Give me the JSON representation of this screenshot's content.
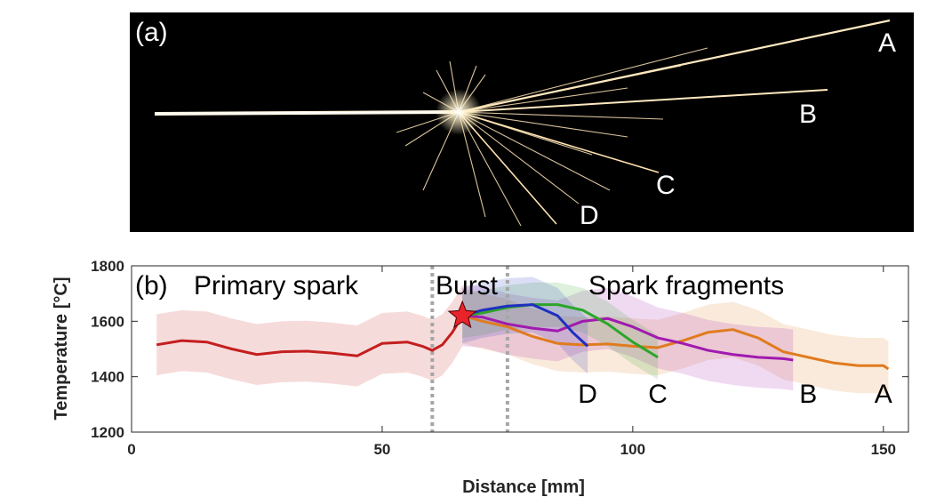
{
  "photo": {
    "panel_label": "(a)",
    "labels": [
      "A",
      "B",
      "C",
      "D"
    ],
    "background": "#000000",
    "spark_color": "#fff3d6"
  },
  "chart_data": {
    "type": "line",
    "panel_label": "(b)",
    "xlabel": "Distance [mm]",
    "ylabel": "Temperature [°C]",
    "xlim": [
      0,
      155
    ],
    "ylim": [
      1200,
      1800
    ],
    "xticks": [
      0,
      50,
      100,
      150
    ],
    "yticks": [
      1200,
      1400,
      1600,
      1800
    ],
    "grid": false,
    "regions": [
      {
        "label": "Primary spark",
        "x_from": 5,
        "x_to": 60
      },
      {
        "label": "Burst",
        "x_from": 60,
        "x_to": 75
      },
      {
        "label": "Spark fragments",
        "x_from": 75,
        "x_to": 152
      }
    ],
    "dividers_x": [
      60,
      75
    ],
    "burst_point": {
      "x": 66,
      "y": 1620
    },
    "series": [
      {
        "name": "Primary spark",
        "color": "#c41e1e",
        "x": [
          5,
          10,
          15,
          20,
          25,
          30,
          35,
          40,
          45,
          50,
          55,
          58,
          60,
          62,
          64,
          66
        ],
        "y": [
          1515,
          1530,
          1525,
          1500,
          1480,
          1490,
          1492,
          1485,
          1475,
          1520,
          1525,
          1510,
          1495,
          1515,
          1560,
          1620
        ],
        "band": 110
      },
      {
        "name": "A",
        "color": "#e07b1e",
        "x": [
          66,
          70,
          75,
          80,
          85,
          90,
          95,
          100,
          105,
          110,
          115,
          120,
          125,
          130,
          135,
          140,
          145,
          150,
          151
        ],
        "y": [
          1620,
          1600,
          1580,
          1545,
          1520,
          1515,
          1518,
          1510,
          1505,
          1530,
          1560,
          1570,
          1540,
          1490,
          1470,
          1450,
          1440,
          1440,
          1428
        ],
        "band": 100
      },
      {
        "name": "B",
        "color": "#a01ab0",
        "x": [
          66,
          70,
          75,
          80,
          85,
          90,
          95,
          100,
          105,
          110,
          115,
          120,
          125,
          130,
          132
        ],
        "y": [
          1620,
          1615,
          1590,
          1575,
          1565,
          1600,
          1610,
          1580,
          1540,
          1520,
          1495,
          1480,
          1470,
          1465,
          1460
        ],
        "band": 110
      },
      {
        "name": "C",
        "color": "#2da52a",
        "x": [
          66,
          70,
          75,
          80,
          85,
          90,
          95,
          100,
          105
        ],
        "y": [
          1620,
          1630,
          1650,
          1660,
          1660,
          1640,
          1590,
          1525,
          1470
        ],
        "band": 80
      },
      {
        "name": "D",
        "color": "#1f2fbf",
        "x": [
          66,
          70,
          75,
          80,
          85,
          88,
          91
        ],
        "y": [
          1620,
          1640,
          1655,
          1660,
          1620,
          1560,
          1510
        ],
        "band": 100
      }
    ],
    "end_labels": [
      {
        "text": "D",
        "x": 91,
        "y": 1345
      },
      {
        "text": "C",
        "x": 105,
        "y": 1345
      },
      {
        "text": "B",
        "x": 135,
        "y": 1345
      },
      {
        "text": "A",
        "x": 150,
        "y": 1345
      }
    ]
  }
}
